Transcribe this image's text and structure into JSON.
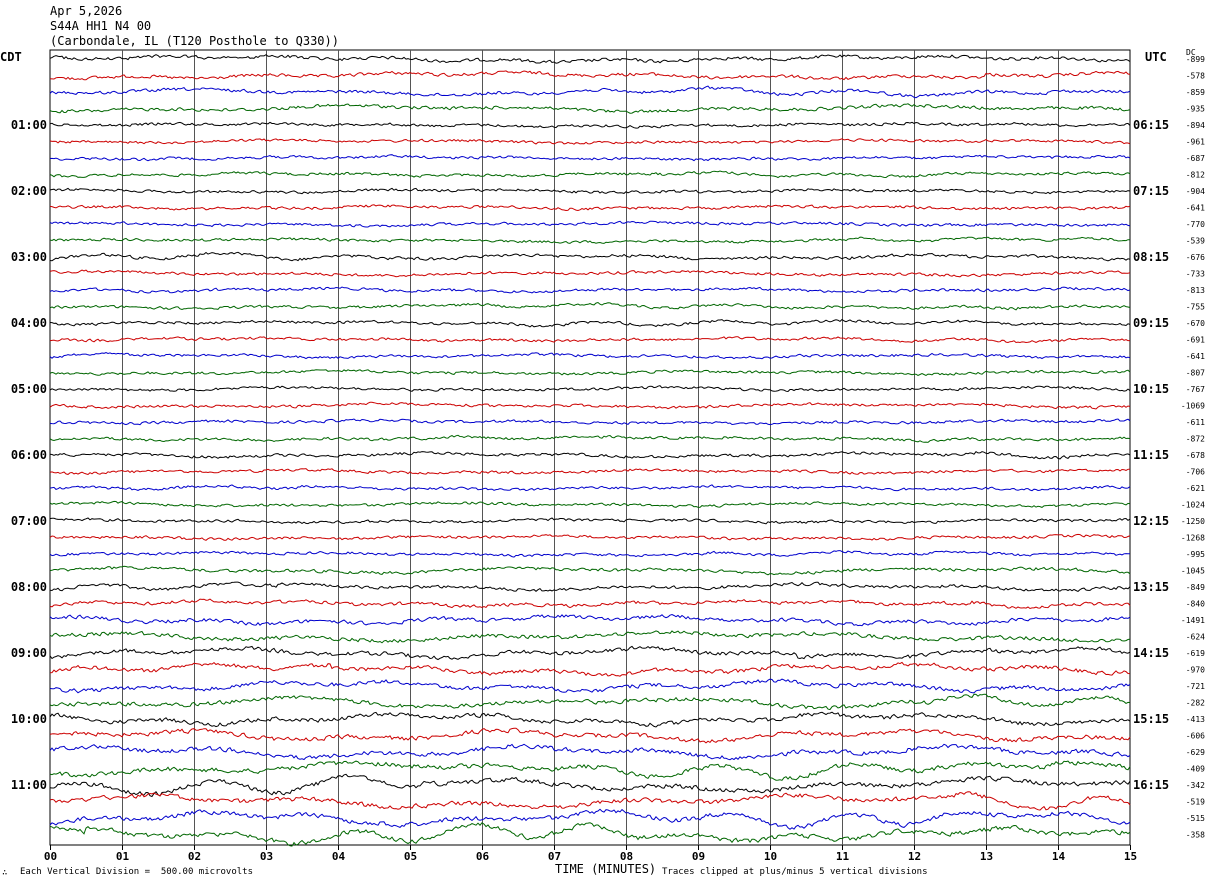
{
  "header": {
    "date": "Apr 5,2026",
    "station": "S44A HH1 N4 00",
    "location": "(Carbondale, IL (T120 Posthole to Q330))"
  },
  "labels": {
    "left_timezone": "CDT",
    "right_timezone": "UTC",
    "dc_label": "DC"
  },
  "footer": {
    "corner_mark": "∴",
    "scale_note": "Each Vertical Division =  500.00 microvolts",
    "clip_note": "Traces clipped at plus/minus 5 vertical divisions"
  },
  "chart_data": {
    "type": "line",
    "title": "",
    "xlabel": "TIME (MINUTES)",
    "x_ticks": [
      "00",
      "01",
      "02",
      "03",
      "04",
      "05",
      "06",
      "07",
      "08",
      "09",
      "10",
      "11",
      "12",
      "13",
      "14",
      "15"
    ],
    "xlim": [
      0,
      15
    ],
    "grid": "vertical lines at each minute",
    "trace_colors": [
      "#000000",
      "#cc0000",
      "#0000cc",
      "#006600"
    ],
    "left_time_labels": [
      "01:00",
      "02:00",
      "03:00",
      "04:00",
      "05:00",
      "06:00",
      "07:00",
      "08:00",
      "09:00",
      "10:00",
      "11:00"
    ],
    "right_time_labels": [
      "06:15",
      "07:15",
      "08:15",
      "09:15",
      "10:15",
      "11:15",
      "12:15",
      "13:15",
      "14:15",
      "15:15",
      "16:15"
    ],
    "dc_offsets": [
      "-899",
      "-578",
      "-859",
      "-935",
      "-894",
      "-961",
      "-687",
      "-812",
      "-904",
      "-641",
      "-770",
      "-539",
      "-676",
      "-733",
      "-813",
      "-755",
      "-670",
      "-691",
      "-641",
      "-807",
      "-767",
      "-1069",
      "-611",
      "-872",
      "-678",
      "-706",
      "-621",
      "-1024",
      "-1250",
      "-1268",
      "-995",
      "-1045",
      "-849",
      "-840",
      "-1491",
      "-624",
      "-619",
      "-970",
      "-721",
      "-282",
      "-413",
      "-606",
      "-629",
      "-409",
      "-342",
      "-519",
      "-515",
      "-358"
    ],
    "trace_count": 48,
    "trace_amplitude": [
      0.9,
      0.9,
      0.8,
      0.9,
      0.5,
      0.5,
      0.5,
      0.5,
      0.5,
      0.5,
      0.5,
      0.5,
      0.7,
      0.6,
      0.5,
      0.5,
      0.5,
      0.5,
      0.5,
      0.5,
      0.5,
      0.6,
      0.5,
      0.5,
      0.6,
      0.5,
      0.5,
      0.5,
      0.5,
      0.5,
      0.5,
      0.8,
      0.9,
      0.9,
      1.2,
      1.3,
      1.4,
      1.5,
      1.5,
      1.5,
      1.6,
      1.6,
      1.7,
      1.8,
      1.8,
      1.8,
      1.8,
      1.9
    ]
  }
}
